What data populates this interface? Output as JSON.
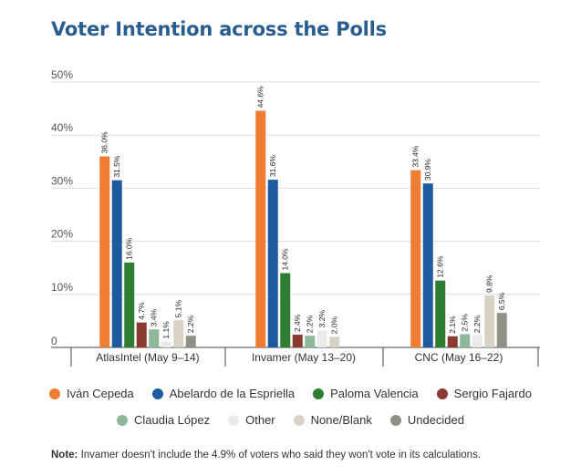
{
  "chart_data": {
    "type": "bar",
    "title": "Voter Intention across the Polls",
    "categories": [
      "AtlasIntel (May 9–14)",
      "Invamer (May 13–20)",
      "CNC (May 16–22)"
    ],
    "ylim": [
      0,
      50
    ],
    "yticks": [
      0,
      10,
      20,
      30,
      40,
      50
    ],
    "ytick_labels": [
      "0",
      "10%",
      "20%",
      "30%",
      "40%",
      "50%"
    ],
    "grid": true,
    "legend_placement": "bottom",
    "series": [
      {
        "name": "Iván Cepeda",
        "color": "#ee7d33",
        "values": [
          36.0,
          44.6,
          33.4
        ],
        "labels": [
          "36.0%",
          "44.6%",
          "33.4%"
        ]
      },
      {
        "name": "Abelardo de la Espriella",
        "color": "#1f5a9e",
        "values": [
          31.5,
          31.6,
          30.9
        ],
        "labels": [
          "31.5%",
          "31.6%",
          "30.9%"
        ]
      },
      {
        "name": "Paloma Valencia",
        "color": "#2d7d32",
        "values": [
          16.0,
          14.0,
          12.6
        ],
        "labels": [
          "16.0%",
          "14.0%",
          "12.6%"
        ]
      },
      {
        "name": "Sergio Fajardo",
        "color": "#8b3a2f",
        "values": [
          4.7,
          2.4,
          2.1
        ],
        "labels": [
          "4.7%",
          "2.4%",
          "2.1%"
        ]
      },
      {
        "name": "Claudia López",
        "color": "#8fb89a",
        "values": [
          3.4,
          2.2,
          2.5
        ],
        "labels": [
          "3.4%",
          "2.2%",
          "2.5%"
        ]
      },
      {
        "name": "Other",
        "color": "#eaeaea",
        "values": [
          1.1,
          3.2,
          2.2
        ],
        "labels": [
          "1.1%",
          "3.2%",
          "2.2%"
        ]
      },
      {
        "name": "None/Blank",
        "color": "#d8d2c6",
        "values": [
          5.1,
          2.0,
          9.8
        ],
        "labels": [
          "5.1%",
          "2.0%",
          "9.8%"
        ]
      },
      {
        "name": "Undecided",
        "color": "#8e9286",
        "values": [
          2.2,
          null,
          6.5
        ],
        "labels": [
          "2.2%",
          "",
          "6.5%"
        ]
      }
    ]
  },
  "note": {
    "label": "Note:",
    "text": " Invamer doesn't include the 4.9% of voters who said they won't vote in its calculations."
  }
}
